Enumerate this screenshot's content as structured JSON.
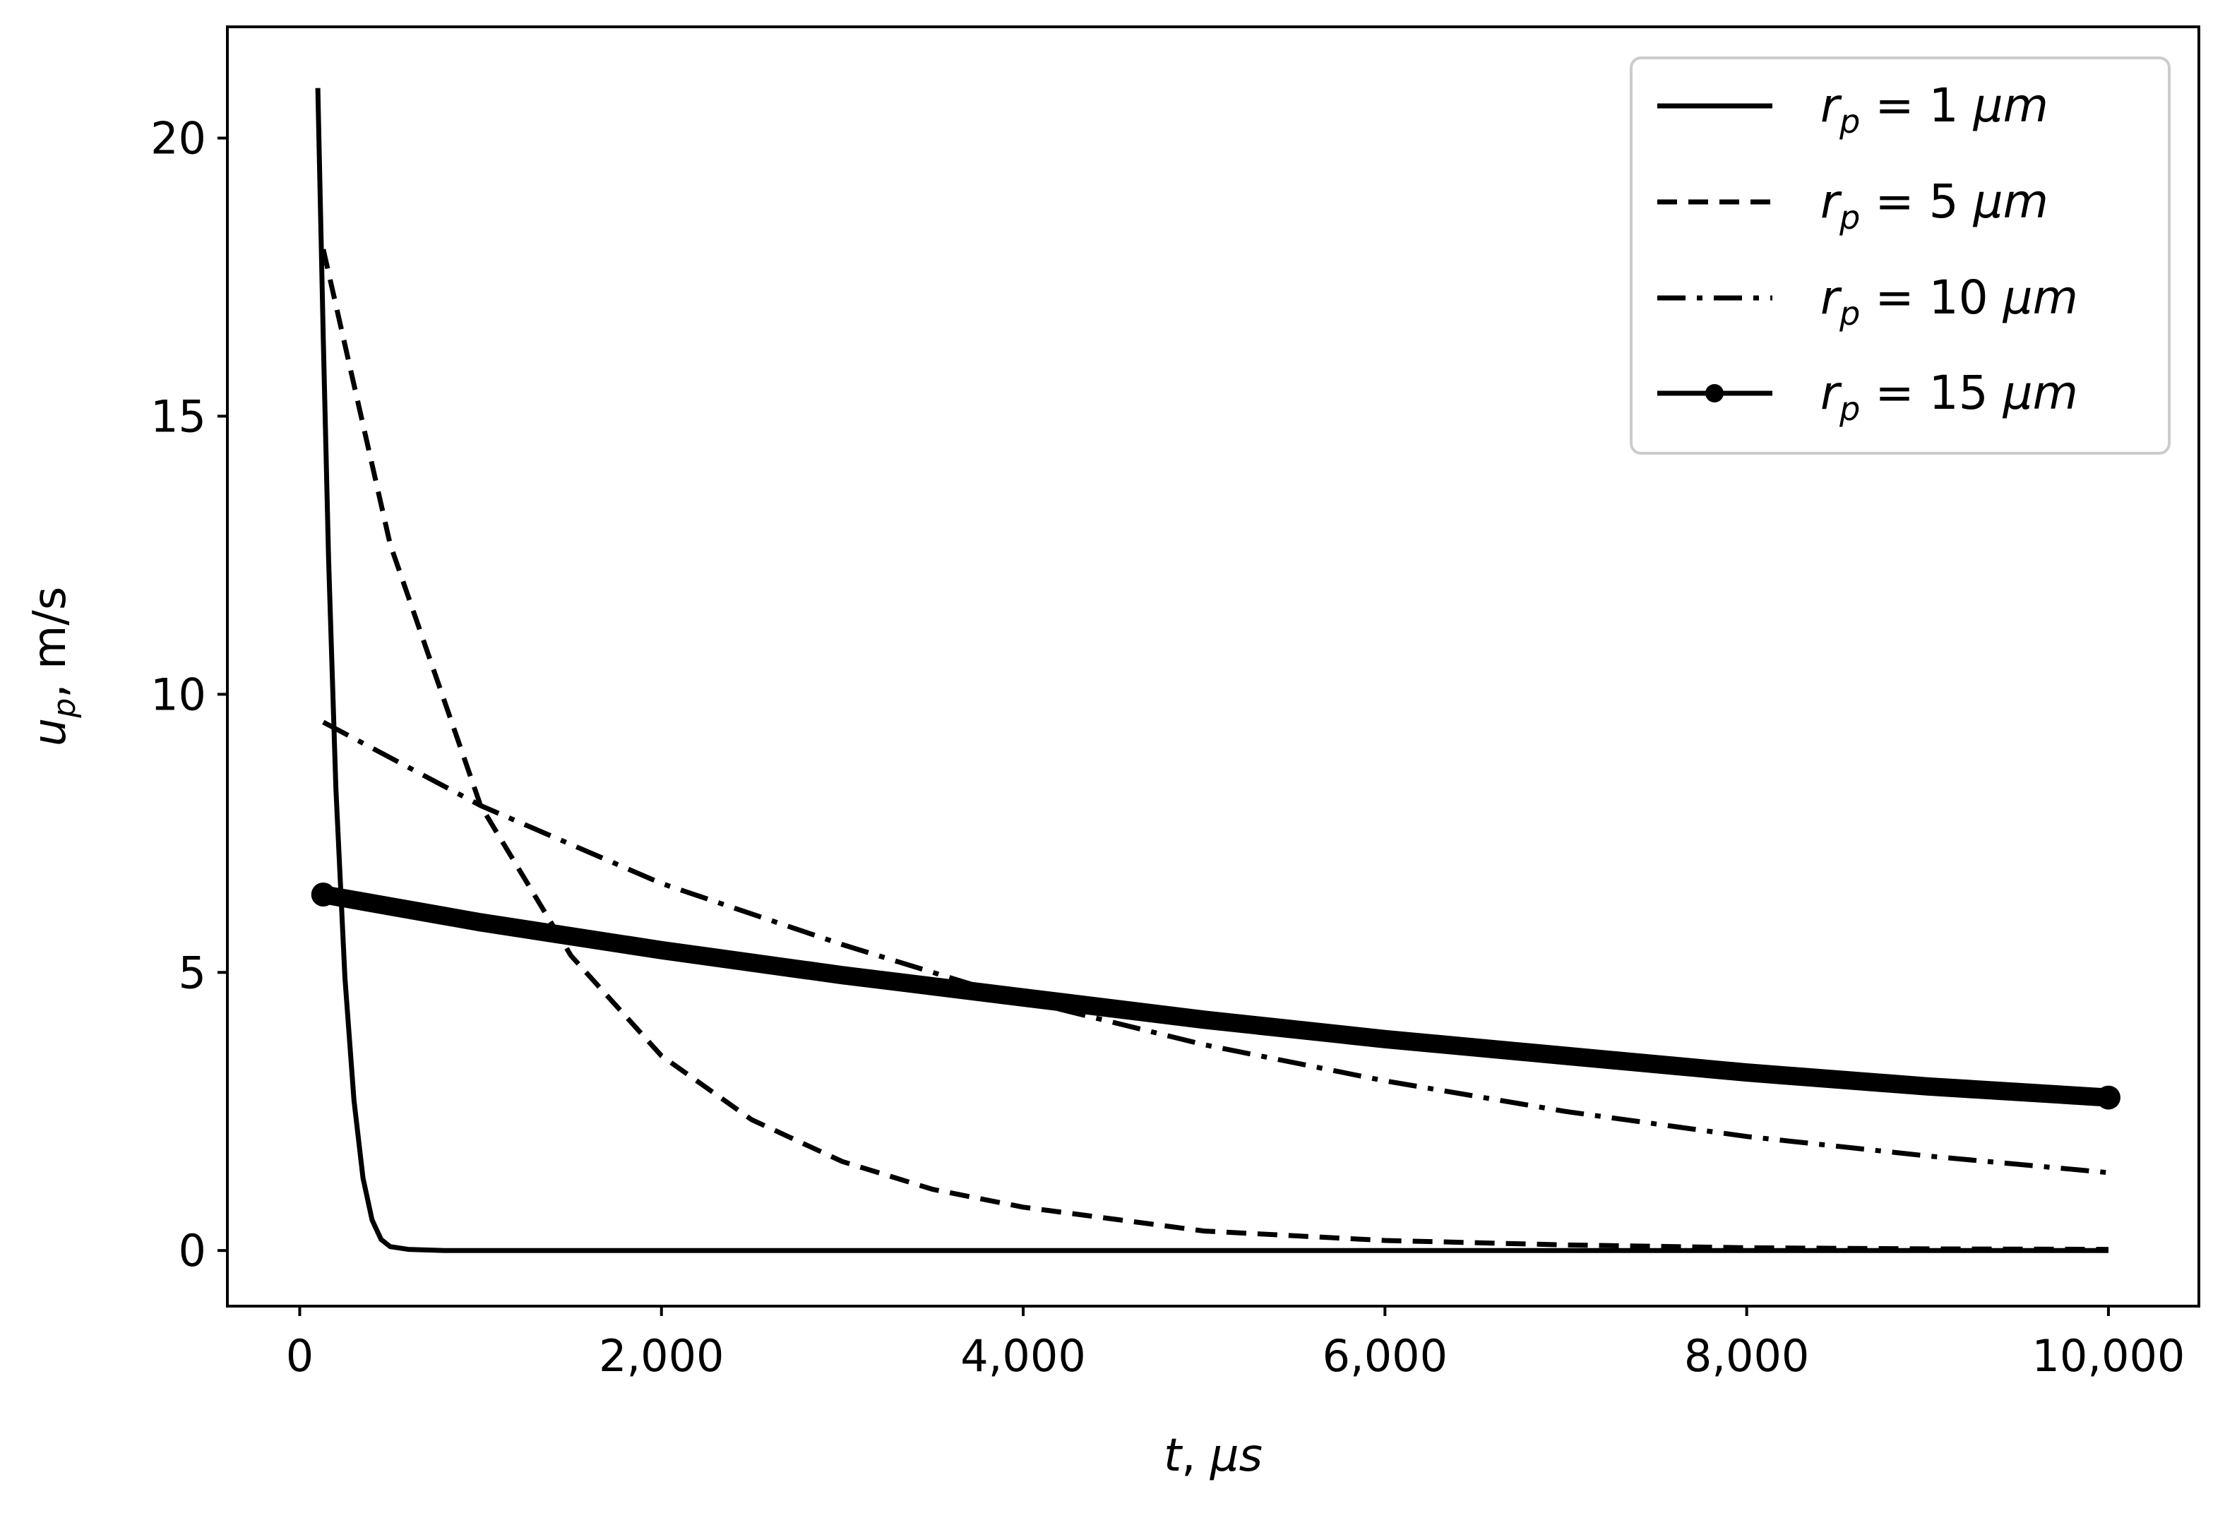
{
  "chart_data": {
    "type": "line",
    "xlabel": {
      "main": "t",
      "sep": ", ",
      "unit": "μs"
    },
    "ylabel": {
      "main": "u",
      "sub": "p",
      "sep": ", ",
      "unit": "m/s"
    },
    "xlim": [
      -400,
      10500
    ],
    "ylim": [
      -1,
      22
    ],
    "x_ticks": [
      {
        "value": 0,
        "label": "0"
      },
      {
        "value": 2000,
        "label": "2,000"
      },
      {
        "value": 4000,
        "label": "4,000"
      },
      {
        "value": 6000,
        "label": "6,000"
      },
      {
        "value": 8000,
        "label": "8,000"
      },
      {
        "value": 10000,
        "label": "10,000"
      }
    ],
    "y_ticks": [
      {
        "value": 0,
        "label": "0"
      },
      {
        "value": 5,
        "label": "5"
      },
      {
        "value": 10,
        "label": "10"
      },
      {
        "value": 15,
        "label": "15"
      },
      {
        "value": 20,
        "label": "20"
      }
    ],
    "grid": false,
    "legend_position": "top-right",
    "series": [
      {
        "name": {
          "var": "r",
          "sub": "p",
          "eq": " = 1 ",
          "unit": "μm"
        },
        "style": "solid",
        "x": [
          100,
          130,
          160,
          200,
          250,
          300,
          350,
          400,
          450,
          500,
          600,
          800,
          1000,
          2000,
          4000,
          6000,
          8000,
          10000
        ],
        "y": [
          20.9,
          16.4,
          12.4,
          8.3,
          4.9,
          2.7,
          1.3,
          0.55,
          0.2,
          0.07,
          0.02,
          0,
          0,
          0,
          0,
          0,
          0,
          0
        ]
      },
      {
        "name": {
          "var": "r",
          "sub": "p",
          "eq": " = 5 ",
          "unit": "μm"
        },
        "style": "dashed",
        "x": [
          130,
          500,
          1000,
          1500,
          2000,
          2500,
          3000,
          3500,
          4000,
          5000,
          6000,
          7000,
          8000,
          9000,
          10000
        ],
        "y": [
          18.0,
          12.7,
          8.0,
          5.3,
          3.5,
          2.35,
          1.6,
          1.1,
          0.78,
          0.35,
          0.18,
          0.1,
          0.05,
          0.03,
          0.02
        ]
      },
      {
        "name": {
          "var": "r",
          "sub": "p",
          "eq": " = 10 ",
          "unit": "μm"
        },
        "style": "dashdot",
        "x": [
          130,
          1000,
          2000,
          3000,
          4000,
          5000,
          6000,
          7000,
          8000,
          9000,
          10000
        ],
        "y": [
          9.5,
          8.0,
          6.6,
          5.5,
          4.5,
          3.7,
          3.05,
          2.5,
          2.05,
          1.7,
          1.4
        ]
      },
      {
        "name": {
          "var": "r",
          "sub": "p",
          "eq": " = 15 ",
          "unit": "μm"
        },
        "style": "solid-marker",
        "x": [
          130,
          1000,
          2000,
          3000,
          4000,
          5000,
          6000,
          7000,
          8000,
          9000,
          10000
        ],
        "y": [
          6.4,
          5.9,
          5.4,
          4.95,
          4.55,
          4.15,
          3.8,
          3.5,
          3.2,
          2.95,
          2.75
        ]
      }
    ]
  }
}
